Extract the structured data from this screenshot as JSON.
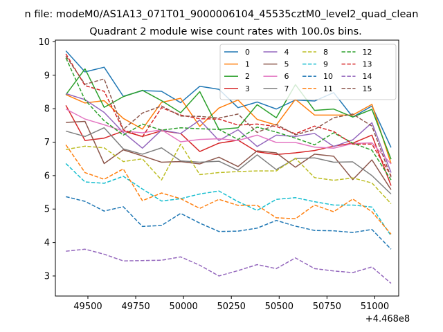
{
  "figure": {
    "suptitle": "n file: modeM0/AS1A13_071T01_9000006104_45535cztM0_level2_quad_clean",
    "offset_label": "+4.468e8"
  },
  "chart_data": {
    "type": "line",
    "title": "Quadrant 2 module wise count rates with 100.0s bins.",
    "xlabel": "",
    "ylabel": "",
    "x_offset": 446800000,
    "xlim": [
      49330,
      51125
    ],
    "ylim": [
      2.4,
      10.05
    ],
    "xticks": [
      49500,
      49750,
      50000,
      50250,
      50500,
      50750,
      51000
    ],
    "xtick_labels": [
      "49500",
      "49750",
      "50000",
      "50250",
      "50500",
      "50750",
      "51000"
    ],
    "yticks": [
      3,
      4,
      5,
      6,
      7,
      8,
      9,
      10
    ],
    "ytick_labels": [
      "3",
      "4",
      "5",
      "6",
      "7",
      "8",
      "9",
      "10"
    ],
    "grid": false,
    "legend_position": "top-right",
    "legend_columns": 4,
    "x": [
      49385,
      49485,
      49585,
      49685,
      49785,
      49885,
      49985,
      50085,
      50185,
      50285,
      50385,
      50485,
      50585,
      50685,
      50785,
      50885,
      50985,
      51085
    ],
    "series": [
      {
        "name": "0",
        "color": "#1f77b4",
        "style": "solid",
        "values": [
          9.73,
          9.1,
          9.24,
          8.37,
          8.54,
          8.52,
          8.18,
          8.67,
          8.58,
          8.03,
          8.2,
          7.99,
          8.26,
          8.23,
          8.48,
          7.75,
          8.08,
          6.84
        ]
      },
      {
        "name": "1",
        "color": "#ff7f0e",
        "style": "solid",
        "values": [
          8.42,
          8.17,
          8.24,
          7.71,
          7.39,
          8.19,
          8.31,
          7.47,
          8.02,
          8.26,
          7.68,
          7.51,
          8.28,
          7.81,
          7.81,
          7.81,
          8.13,
          6.36
        ]
      },
      {
        "name": "2",
        "color": "#2ca02c",
        "style": "solid",
        "values": [
          8.42,
          9.19,
          8.04,
          8.36,
          8.55,
          8.24,
          7.88,
          8.51,
          7.38,
          7.43,
          8.12,
          7.73,
          8.72,
          7.95,
          7.99,
          7.75,
          7.98,
          6.49
        ]
      },
      {
        "name": "3",
        "color": "#d62728",
        "style": "solid",
        "values": [
          8.1,
          7.05,
          7.12,
          7.33,
          7.17,
          7.34,
          7.26,
          6.72,
          6.97,
          7.06,
          6.71,
          6.63,
          6.68,
          6.75,
          6.88,
          6.97,
          7.21,
          5.7
        ]
      },
      {
        "name": "4",
        "color": "#9467bd",
        "style": "solid",
        "values": [
          8.45,
          8.27,
          7.89,
          7.29,
          6.82,
          7.36,
          7.26,
          7.66,
          7.05,
          7.37,
          6.87,
          7.21,
          7.17,
          7.26,
          6.87,
          7.07,
          7.58,
          6.09
        ]
      },
      {
        "name": "5",
        "color": "#8c564b",
        "style": "solid",
        "values": [
          7.59,
          7.62,
          6.36,
          6.77,
          6.59,
          6.4,
          6.42,
          6.35,
          6.55,
          6.27,
          6.74,
          6.68,
          6.25,
          6.64,
          6.58,
          5.88,
          6.47,
          5.58
        ]
      },
      {
        "name": "6",
        "color": "#e377c2",
        "style": "solid",
        "values": [
          7.99,
          7.69,
          7.52,
          7.33,
          7.28,
          7.37,
          7.01,
          7.08,
          7.1,
          7.05,
          7.21,
          6.99,
          6.99,
          6.85,
          6.82,
          6.96,
          6.98,
          6.35
        ]
      },
      {
        "name": "7",
        "color": "#7f7f7f",
        "style": "solid",
        "values": [
          7.33,
          7.17,
          7.43,
          6.8,
          6.64,
          6.83,
          6.44,
          6.4,
          6.43,
          6.16,
          6.62,
          6.18,
          6.51,
          6.53,
          6.4,
          6.41,
          6.0,
          5.45
        ]
      },
      {
        "name": "8",
        "color": "#bcbd22",
        "style": "dashed",
        "values": [
          6.78,
          6.88,
          6.83,
          6.42,
          6.5,
          5.87,
          6.94,
          6.03,
          6.09,
          6.12,
          6.14,
          6.14,
          6.52,
          5.94,
          5.86,
          5.93,
          5.78,
          5.16
        ]
      },
      {
        "name": "9",
        "color": "#17becf",
        "style": "dashed",
        "values": [
          6.36,
          5.81,
          5.77,
          5.98,
          5.6,
          5.24,
          5.31,
          5.45,
          5.54,
          5.22,
          4.96,
          5.29,
          5.34,
          5.22,
          5.12,
          5.12,
          5.06,
          4.2
        ]
      },
      {
        "name": "10",
        "color": "#1f77b4",
        "style": "dashed",
        "values": [
          5.37,
          5.23,
          4.94,
          5.07,
          4.48,
          4.51,
          4.87,
          4.58,
          4.33,
          4.34,
          4.43,
          4.66,
          4.49,
          4.36,
          4.35,
          4.3,
          4.39,
          3.8
        ]
      },
      {
        "name": "11",
        "color": "#ff7f0e",
        "style": "dashed",
        "values": [
          6.92,
          6.09,
          5.89,
          6.2,
          5.25,
          5.48,
          5.31,
          5.02,
          5.29,
          5.11,
          5.11,
          4.74,
          4.71,
          5.12,
          4.92,
          5.3,
          4.92,
          4.25
        ]
      },
      {
        "name": "12",
        "color": "#2ca02c",
        "style": "dashed",
        "values": [
          9.52,
          8.26,
          7.64,
          7.21,
          7.54,
          7.36,
          7.43,
          7.4,
          7.38,
          7.08,
          7.45,
          7.3,
          7.12,
          6.92,
          7.28,
          6.97,
          6.76,
          5.87
        ]
      },
      {
        "name": "13",
        "color": "#d62728",
        "style": "dashed",
        "values": [
          9.64,
          8.69,
          8.52,
          7.37,
          7.16,
          8.03,
          7.81,
          7.7,
          7.69,
          7.51,
          7.54,
          7.47,
          7.25,
          7.48,
          7.32,
          6.94,
          6.94,
          6.0
        ]
      },
      {
        "name": "14",
        "color": "#9467bd",
        "style": "dashed",
        "values": [
          3.74,
          3.8,
          3.65,
          3.45,
          3.46,
          3.47,
          3.57,
          3.32,
          3.0,
          3.16,
          3.34,
          3.22,
          3.54,
          3.22,
          3.15,
          3.1,
          3.27,
          2.78
        ]
      },
      {
        "name": "15",
        "color": "#8c564b",
        "style": "dashed",
        "values": [
          9.57,
          8.73,
          8.89,
          7.38,
          7.87,
          8.08,
          7.78,
          7.77,
          7.72,
          7.84,
          7.29,
          7.53,
          7.22,
          7.38,
          7.73,
          7.84,
          7.48,
          5.95
        ]
      }
    ]
  }
}
